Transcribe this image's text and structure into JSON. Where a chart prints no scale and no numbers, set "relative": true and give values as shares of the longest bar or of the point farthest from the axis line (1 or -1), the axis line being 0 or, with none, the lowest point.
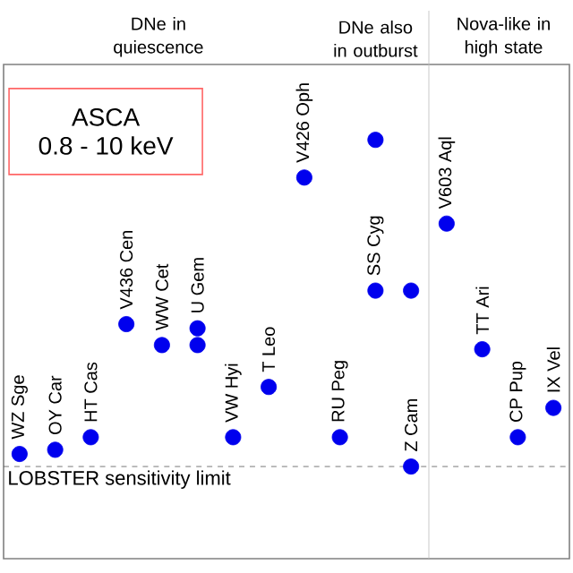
{
  "chart_data": {
    "type": "scatter",
    "relative": true,
    "categories": [
      "WZ Sge",
      "OY Car",
      "HT Cas",
      "V436 Cen",
      "WW Cet",
      "U Gem",
      "VW Hyi",
      "T Leo",
      "V426 Oph",
      "RU Peg",
      "SS Cyg",
      "Z Cam",
      "V603 Aql",
      "TT Ari",
      "CP Pup",
      "IX Vel"
    ],
    "series": [
      {
        "color": "#0000ee",
        "values": [
          0.25,
          0.26,
          0.29,
          0.56,
          0.51,
          0.55,
          0.29,
          0.41,
          0.91,
          0.29,
          0.64,
          0.22,
          0.8,
          0.5,
          0.29,
          0.36
        ]
      },
      {
        "color": "#0000ee",
        "values": [
          null,
          null,
          null,
          null,
          null,
          0.51,
          null,
          null,
          null,
          null,
          1.0,
          0.64,
          null,
          null,
          null,
          null
        ]
      }
    ],
    "ref_lines": [
      {
        "axis": "y",
        "value": 0.22,
        "label": "LOBSTER sensitivity limit",
        "color": "#555555",
        "line_style": "dashed"
      }
    ],
    "annotations": [
      "DNe in quiescence",
      "DNe also in outburst",
      "Nova-like in high state",
      "ASCA",
      "0.8 - 10 keV"
    ]
  }
}
